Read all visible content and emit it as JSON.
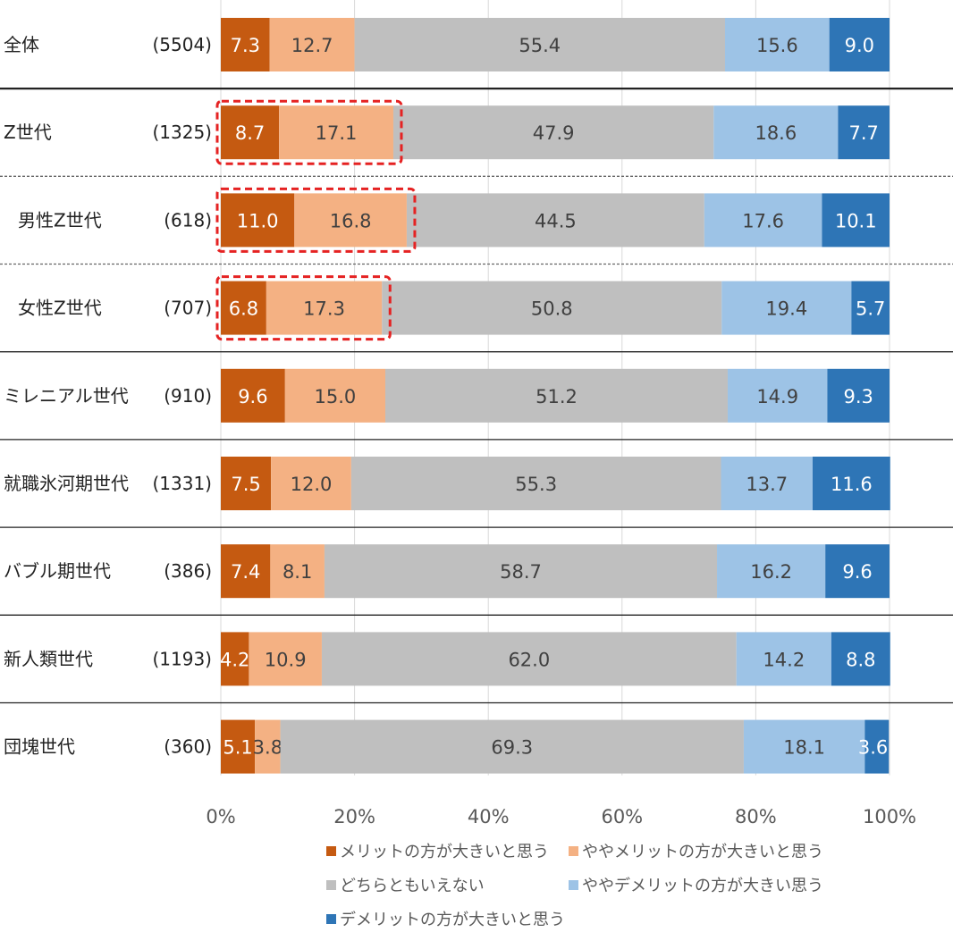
{
  "chart_data": {
    "type": "bar",
    "orientation": "horizontal",
    "stacked": "percent",
    "categories": [
      {
        "label": "全体",
        "n": "(5504)"
      },
      {
        "label": "Z世代",
        "n": "(1325)"
      },
      {
        "label": "男性Z世代",
        "n": "(618)"
      },
      {
        "label": "女性Z世代",
        "n": "(707)"
      },
      {
        "label": "ミレニアル世代",
        "n": "(910)"
      },
      {
        "label": "就職氷河期世代",
        "n": "(1331)"
      },
      {
        "label": "バブル期世代",
        "n": "(386)"
      },
      {
        "label": "新人類世代",
        "n": "(1193)"
      },
      {
        "label": "団塊世代",
        "n": "(360)"
      }
    ],
    "series": [
      {
        "name": "メリットの方が大きいと思う",
        "color": "#C55A11",
        "values": [
          7.3,
          8.7,
          11.0,
          6.8,
          9.6,
          7.5,
          7.4,
          4.2,
          5.1
        ],
        "labels": [
          "7.3",
          "8.7",
          "11.0",
          "6.8",
          "9.6",
          "7.5",
          "7.4",
          "4.2",
          "5.1"
        ]
      },
      {
        "name": "ややメリットの方が大きいと思う",
        "color": "#F4B183",
        "values": [
          12.7,
          17.1,
          16.8,
          17.3,
          15.0,
          12.0,
          8.1,
          10.9,
          3.8
        ],
        "labels": [
          "12.7",
          "17.1",
          "16.8",
          "17.3",
          "15.0",
          "12.0",
          "8.1",
          "10.9",
          "3.8"
        ]
      },
      {
        "name": "どちらともいえない",
        "color": "#BFBFBF",
        "values": [
          55.4,
          47.9,
          44.5,
          50.8,
          51.2,
          55.3,
          58.7,
          62.0,
          69.3
        ],
        "labels": [
          "55.4",
          "47.9",
          "44.5",
          "50.8",
          "51.2",
          "55.3",
          "58.7",
          "62.0",
          "69.3"
        ]
      },
      {
        "name": "ややデメリットの方が大きい思う",
        "color": "#9DC3E6",
        "values": [
          15.6,
          18.6,
          17.6,
          19.4,
          14.9,
          13.7,
          16.2,
          14.2,
          18.1
        ],
        "labels": [
          "15.6",
          "18.6",
          "17.6",
          "19.4",
          "14.9",
          "13.7",
          "16.2",
          "14.2",
          "18.1"
        ]
      },
      {
        "name": "デメリットの方が大きいと思う",
        "color": "#2E75B6",
        "values": [
          9.0,
          7.7,
          10.1,
          5.7,
          9.3,
          11.6,
          9.6,
          8.8,
          3.6
        ],
        "labels": [
          "9.0",
          "7.7",
          "10.1",
          "5.7",
          "9.3",
          "11.6",
          "9.6",
          "8.8",
          "3.6"
        ]
      }
    ],
    "xlim": [
      0,
      100
    ],
    "x_ticks": [
      "0%",
      "20%",
      "40%",
      "60%",
      "80%",
      "100%"
    ],
    "grid": true,
    "legend_position": "bottom",
    "highlighted_rows": [
      1,
      2,
      3
    ],
    "highlight_color": "#E52222"
  }
}
